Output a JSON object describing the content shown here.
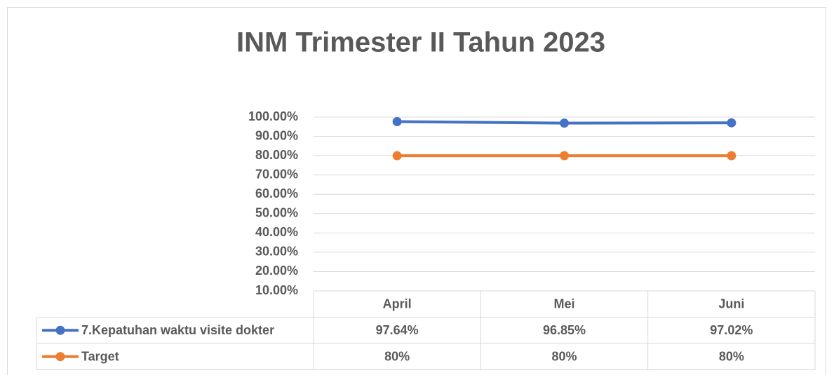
{
  "chart_data": {
    "type": "line",
    "title": "INM Trimester II Tahun 2023",
    "categories": [
      "April",
      "Mei",
      "Juni"
    ],
    "series": [
      {
        "name": "7.Kepatuhan waktu visite dokter",
        "color": "#4472c4",
        "values": [
          97.64,
          96.85,
          97.02
        ],
        "value_labels": [
          "97.64%",
          "96.85%",
          "97.02%"
        ]
      },
      {
        "name": "Target",
        "color": "#ed7d31",
        "values": [
          80,
          80,
          80
        ],
        "value_labels": [
          "80%",
          "80%",
          "80%"
        ]
      }
    ],
    "ylim": [
      10,
      100
    ],
    "yticks": [
      {
        "value": 10,
        "label": "10.00%"
      },
      {
        "value": 20,
        "label": "20.00%"
      },
      {
        "value": 30,
        "label": "30.00%"
      },
      {
        "value": 40,
        "label": "40.00%"
      },
      {
        "value": 50,
        "label": "50.00%"
      },
      {
        "value": 60,
        "label": "60.00%"
      },
      {
        "value": 70,
        "label": "70.00%"
      },
      {
        "value": 80,
        "label": "80.00%"
      },
      {
        "value": 90,
        "label": "90.00%"
      },
      {
        "value": 100,
        "label": "100.00%"
      }
    ],
    "grid": true,
    "data_table": true
  }
}
